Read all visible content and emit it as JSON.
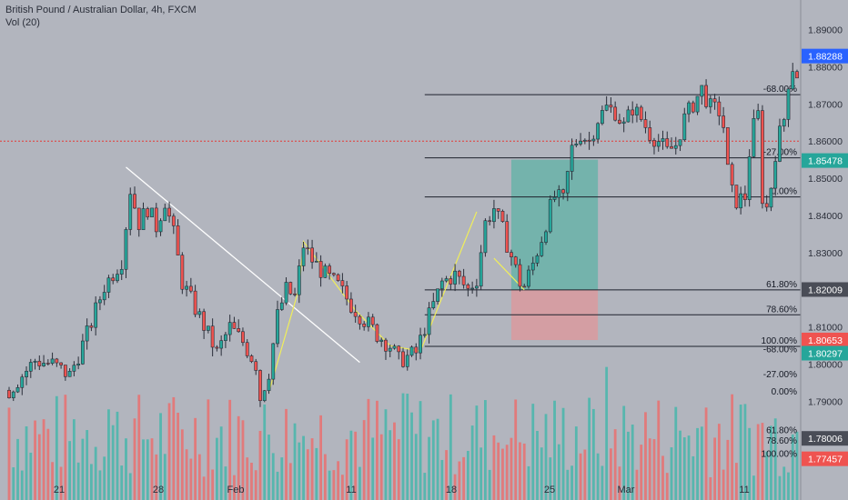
{
  "header": {
    "title": "British Pound / Australian Dollar, 4h, FXCM",
    "indicator": "Vol (20)"
  },
  "colors": {
    "background": "#b2b5be",
    "up": "#26a69a",
    "down": "#ef5350",
    "wick": "#2a2e39",
    "vol_up": "#4db6ac",
    "vol_down": "#e57373",
    "target_zone": "#5fb3a6",
    "stop_zone": "#d99a9f",
    "trendline": "#ffffff",
    "harmonic": "#f0ee5a",
    "price_line": "#e53935"
  },
  "chart_data": {
    "type": "candlestick",
    "symbol": "GBPAUD",
    "timeframe": "4h",
    "y_axis": {
      "ylim": [
        1.785,
        1.896
      ],
      "ticks": [
        "1.89000",
        "1.88000",
        "1.87000",
        "1.86000",
        "1.85000",
        "1.84000",
        "1.83000",
        "1.82000",
        "1.81000",
        "1.80000",
        "1.79000"
      ]
    },
    "x_axis": {
      "ticks": [
        "21",
        "28",
        "Feb",
        "11",
        "18",
        "25",
        "Mar",
        "11"
      ]
    },
    "price_labels": [
      {
        "text": "1.88288",
        "value": 1.88288,
        "color": "#2962ff"
      },
      {
        "text": "1.85478",
        "value": 1.85478,
        "color": "#26a69a"
      },
      {
        "text": "1.82009",
        "value": 1.82009,
        "color": "#4a4d57"
      },
      {
        "text": "1.80653",
        "value": 1.80653,
        "color": "#ef5350"
      },
      {
        "text": "1.80297",
        "value": 1.80297,
        "color": "#26a69a"
      },
      {
        "text": "1.78006",
        "value": 1.78006,
        "color": "#4a4d57"
      },
      {
        "text": "1.77457",
        "value": 1.77457,
        "color": "#ef5350"
      }
    ],
    "dotted_price_level": 1.86,
    "fib_levels_upper": [
      {
        "label": "-68.00%",
        "value": 1.8725
      },
      {
        "label": "-27.00%",
        "value": 1.8555
      },
      {
        "label": "0.00%",
        "value": 1.845
      },
      {
        "label": "61.80%",
        "value": 1.82
      },
      {
        "label": "78.60%",
        "value": 1.8133
      },
      {
        "label": "100.00%",
        "value": 1.8048
      }
    ],
    "fib_levels_lower_labels": [
      {
        "label": "-68.00%",
        "value": 1.804
      },
      {
        "label": "-27.00%",
        "value": 1.7972
      },
      {
        "label": "0.00%",
        "value": 1.7926
      },
      {
        "label": "61.80%",
        "value": 1.7822
      },
      {
        "label": "78.60%",
        "value": 1.7794
      },
      {
        "label": "100.00%",
        "value": 1.7758
      }
    ],
    "long_position": {
      "entry": 1.82,
      "target": 1.855,
      "stop": 1.8065
    },
    "price_path": [
      [
        0,
        1.793
      ],
      [
        6,
        1.801
      ],
      [
        10,
        1.8
      ],
      [
        14,
        1.797
      ],
      [
        18,
        1.808
      ],
      [
        22,
        1.821
      ],
      [
        26,
        1.828
      ],
      [
        28,
        1.847
      ],
      [
        30,
        1.838
      ],
      [
        32,
        1.842
      ],
      [
        34,
        1.837
      ],
      [
        36,
        1.844
      ],
      [
        38,
        1.835
      ],
      [
        40,
        1.822
      ],
      [
        43,
        1.815
      ],
      [
        46,
        1.808
      ],
      [
        48,
        1.803
      ],
      [
        51,
        1.81
      ],
      [
        54,
        1.806
      ],
      [
        57,
        1.8
      ],
      [
        58,
        1.791
      ],
      [
        60,
        1.798
      ],
      [
        62,
        1.813
      ],
      [
        64,
        1.82
      ],
      [
        66,
        1.818
      ],
      [
        68,
        1.832
      ],
      [
        70,
        1.828
      ],
      [
        73,
        1.824
      ],
      [
        76,
        1.821
      ],
      [
        79,
        1.816
      ],
      [
        82,
        1.812
      ],
      [
        85,
        1.808
      ],
      [
        88,
        1.805
      ],
      [
        90,
        1.801
      ],
      [
        92,
        1.802
      ],
      [
        94,
        1.803
      ],
      [
        96,
        1.81
      ],
      [
        98,
        1.816
      ],
      [
        100,
        1.822
      ],
      [
        103,
        1.824
      ],
      [
        106,
        1.82
      ],
      [
        108,
        1.823
      ],
      [
        110,
        1.838
      ],
      [
        112,
        1.842
      ],
      [
        114,
        1.836
      ],
      [
        116,
        1.829
      ],
      [
        118,
        1.822
      ],
      [
        119,
        1.821
      ],
      [
        121,
        1.827
      ],
      [
        123,
        1.834
      ],
      [
        125,
        1.842
      ],
      [
        126,
        1.845
      ],
      [
        128,
        1.844
      ],
      [
        130,
        1.858
      ],
      [
        132,
        1.862
      ],
      [
        134,
        1.86
      ],
      [
        136,
        1.866
      ],
      [
        138,
        1.869
      ],
      [
        140,
        1.868
      ],
      [
        142,
        1.864
      ],
      [
        144,
        1.869
      ],
      [
        146,
        1.866
      ],
      [
        148,
        1.862
      ],
      [
        150,
        1.86
      ],
      [
        152,
        1.857
      ],
      [
        154,
        1.859
      ],
      [
        156,
        1.866
      ],
      [
        158,
        1.87
      ],
      [
        160,
        1.874
      ],
      [
        162,
        1.869
      ],
      [
        164,
        1.868
      ],
      [
        165,
        1.864
      ],
      [
        166,
        1.852
      ],
      [
        167,
        1.846
      ],
      [
        168,
        1.844
      ],
      [
        170,
        1.845
      ],
      [
        171,
        1.857
      ],
      [
        172,
        1.864
      ],
      [
        173,
        1.867
      ],
      [
        174,
        1.845
      ],
      [
        175,
        1.842
      ],
      [
        176,
        1.848
      ],
      [
        177,
        1.857
      ],
      [
        178,
        1.862
      ],
      [
        179,
        1.866
      ],
      [
        180,
        1.876
      ],
      [
        181,
        1.88
      ],
      [
        182,
        1.878
      ]
    ]
  }
}
